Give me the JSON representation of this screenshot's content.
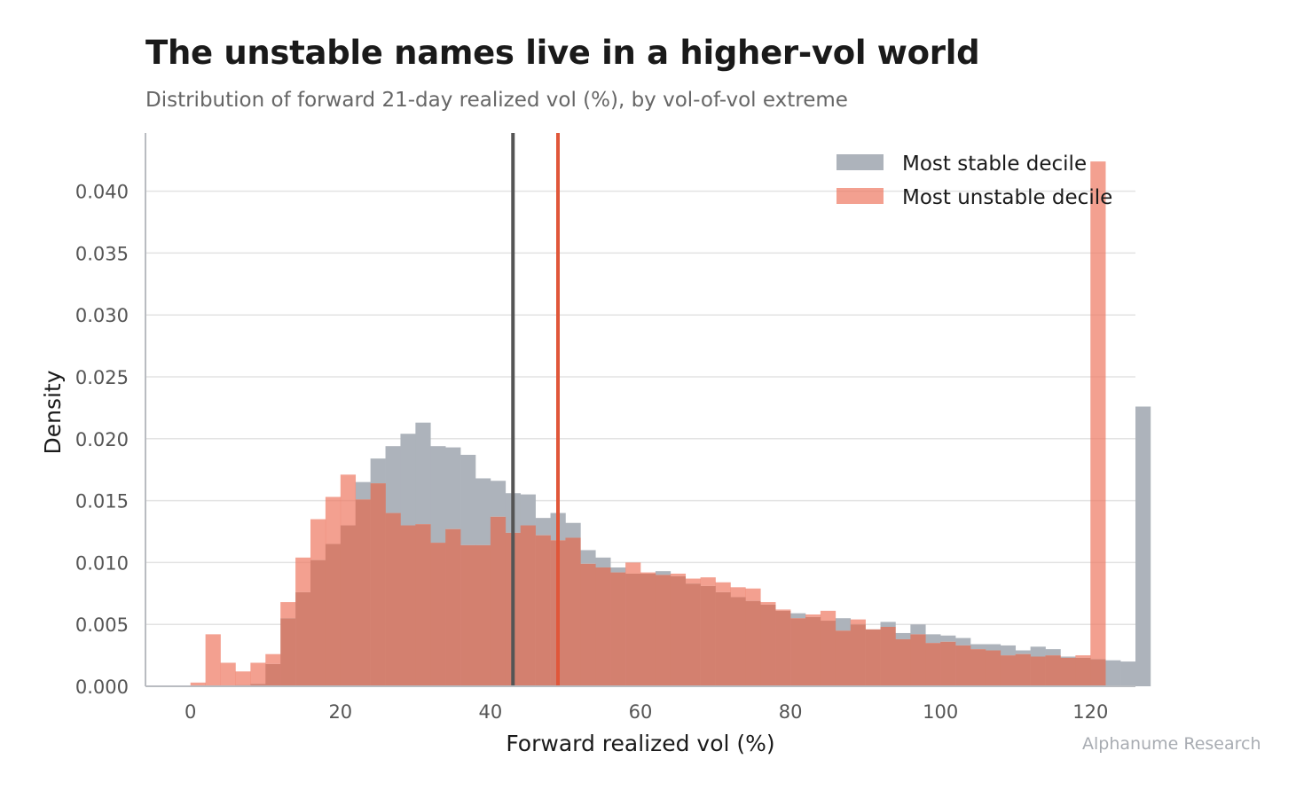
{
  "chart_data": {
    "type": "histogram",
    "title": "The unstable names live in a higher-vol world",
    "subtitle": "Distribution of forward 21-day realized vol (%), by vol-of-vol extreme",
    "xlabel": "Forward realized vol (%)",
    "ylabel": "Density",
    "xlim": [
      -6,
      126
    ],
    "ylim": [
      0,
      0.0447
    ],
    "x_ticks": [
      0,
      20,
      40,
      60,
      80,
      100,
      120
    ],
    "x_tick_labels": [
      "0",
      "20",
      "40",
      "60",
      "80",
      "100",
      "120"
    ],
    "y_ticks": [
      0,
      0.005,
      0.01,
      0.015,
      0.02,
      0.025,
      0.03,
      0.035,
      0.04
    ],
    "y_tick_labels": [
      "0.000",
      "0.005",
      "0.010",
      "0.015",
      "0.020",
      "0.025",
      "0.030",
      "0.035",
      "0.040"
    ],
    "grid": "horizontal",
    "legend_position": "top-right",
    "bin_start": 0,
    "bin_width": 2,
    "series": [
      {
        "name": "Most stable decile",
        "color": "#adb3bb",
        "values": [
          0,
          0,
          0,
          0.0001,
          0.0002,
          0.0018,
          0.0055,
          0.0076,
          0.0102,
          0.0115,
          0.013,
          0.0165,
          0.0184,
          0.0194,
          0.0204,
          0.0213,
          0.0194,
          0.0193,
          0.0187,
          0.0168,
          0.0166,
          0.0156,
          0.0155,
          0.0136,
          0.014,
          0.0132,
          0.011,
          0.0104,
          0.0096,
          0.0091,
          0.0091,
          0.0093,
          0.0089,
          0.0083,
          0.0081,
          0.0076,
          0.0072,
          0.0069,
          0.0066,
          0.0061,
          0.0059,
          0.0056,
          0.0053,
          0.0055,
          0.005,
          0.0046,
          0.0052,
          0.0043,
          0.005,
          0.0042,
          0.0041,
          0.0039,
          0.0034,
          0.0034,
          0.0033,
          0.0029,
          0.0032,
          0.003,
          0.0024,
          0.0023,
          0.0022,
          0.0021,
          0.002,
          0.0226
        ]
      },
      {
        "name": "Most unstable decile",
        "color": "#ee7b65",
        "values": [
          0.0003,
          0.0042,
          0.0019,
          0.0012,
          0.0019,
          0.0026,
          0.0068,
          0.0104,
          0.0135,
          0.0153,
          0.0171,
          0.0151,
          0.0164,
          0.014,
          0.013,
          0.0131,
          0.0116,
          0.0127,
          0.0114,
          0.0114,
          0.0137,
          0.0124,
          0.013,
          0.0122,
          0.0118,
          0.012,
          0.0099,
          0.0096,
          0.0092,
          0.01,
          0.0092,
          0.009,
          0.0091,
          0.0087,
          0.0088,
          0.0084,
          0.008,
          0.0079,
          0.0068,
          0.0062,
          0.0055,
          0.0058,
          0.0061,
          0.0045,
          0.0054,
          0.0046,
          0.0048,
          0.0038,
          0.0042,
          0.0035,
          0.0036,
          0.0033,
          0.003,
          0.0029,
          0.0025,
          0.0026,
          0.0024,
          0.0025,
          0.0023,
          0.0025,
          0.0424
        ]
      }
    ],
    "reference_lines": [
      {
        "name": "stable-median-line",
        "x": 43,
        "color": "#555555"
      },
      {
        "name": "unstable-median-line",
        "x": 49,
        "color": "#e0573a"
      }
    ],
    "overlap_color": "#d3806f"
  },
  "footer": "Alphanume Research"
}
